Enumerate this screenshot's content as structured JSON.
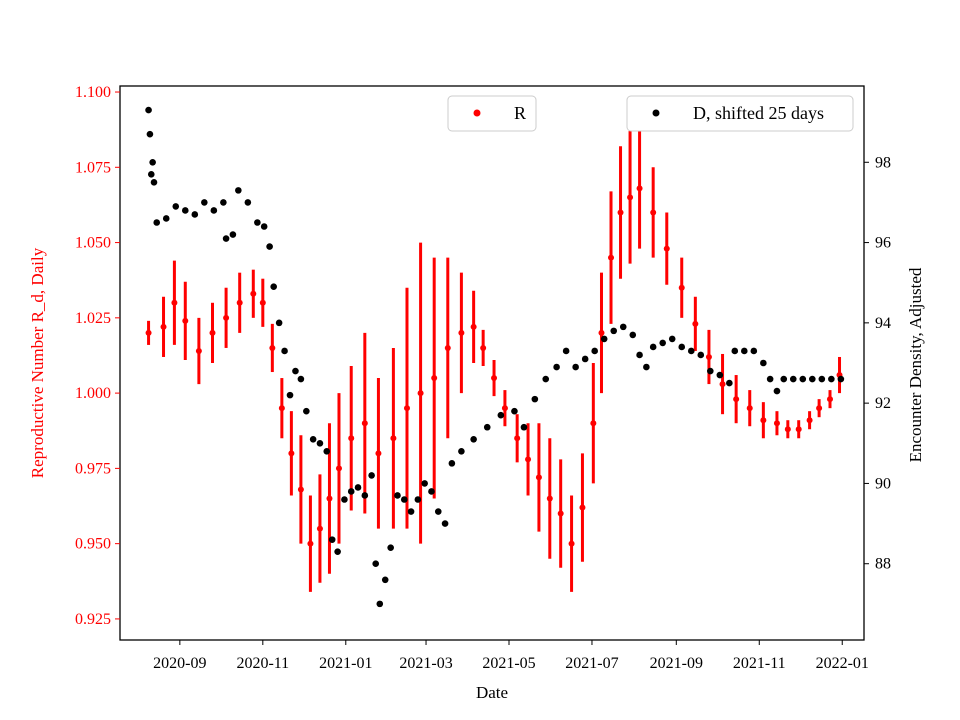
{
  "chart_data": {
    "type": "scatter",
    "xlabel": "Date",
    "x_ticks": [
      "2020-09",
      "2020-11",
      "2021-01",
      "2021-03",
      "2021-05",
      "2021-07",
      "2021-09",
      "2021-11",
      "2022-01"
    ],
    "x_range": [
      "2020-07-19",
      "2022-01-17"
    ],
    "left_axis": {
      "label": "Reproductive Number R_d, Daily",
      "color": "#ff0000",
      "ylim": [
        0.918,
        1.102
      ],
      "ticks": [
        "0.925",
        "0.950",
        "0.975",
        "1.000",
        "1.025",
        "1.050",
        "1.075",
        "1.100"
      ]
    },
    "right_axis": {
      "label": "Encounter Density, Adjusted",
      "color": "#000000",
      "ylim": [
        86.1,
        99.9
      ],
      "ticks": [
        "88",
        "90",
        "92",
        "94",
        "96",
        "98"
      ]
    },
    "legend": [
      {
        "label": "R",
        "color": "#ff0000",
        "position": "top-center"
      },
      {
        "label": "D, shifted 25 days",
        "color": "#000000",
        "position": "top-right"
      }
    ],
    "series": [
      {
        "name": "R",
        "axis": "left",
        "color": "#ff0000",
        "marker": "point with vertical error bars",
        "points": [
          [
            "2020-08-09",
            1.02,
            0.004
          ],
          [
            "2020-08-20",
            1.022,
            0.01
          ],
          [
            "2020-08-28",
            1.03,
            0.014
          ],
          [
            "2020-09-05",
            1.024,
            0.013
          ],
          [
            "2020-09-15",
            1.014,
            0.011
          ],
          [
            "2020-09-25",
            1.02,
            0.01
          ],
          [
            "2020-10-05",
            1.025,
            0.01
          ],
          [
            "2020-10-15",
            1.03,
            0.01
          ],
          [
            "2020-10-25",
            1.033,
            0.008
          ],
          [
            "2020-11-01",
            1.03,
            0.008
          ],
          [
            "2020-11-08",
            1.015,
            0.008
          ],
          [
            "2020-11-15",
            0.995,
            0.01
          ],
          [
            "2020-11-22",
            0.98,
            0.014
          ],
          [
            "2020-11-29",
            0.968,
            0.018
          ],
          [
            "2020-12-06",
            0.95,
            0.016
          ],
          [
            "2020-12-13",
            0.955,
            0.018
          ],
          [
            "2020-12-20",
            0.965,
            0.025
          ],
          [
            "2020-12-27",
            0.975,
            0.025
          ],
          [
            "2021-01-05",
            0.985,
            0.024
          ],
          [
            "2021-01-15",
            0.99,
            0.03
          ],
          [
            "2021-01-25",
            0.98,
            0.025
          ],
          [
            "2021-02-05",
            0.985,
            0.03
          ],
          [
            "2021-02-15",
            0.995,
            0.04
          ],
          [
            "2021-02-25",
            1.0,
            0.05
          ],
          [
            "2021-03-07",
            1.005,
            0.04
          ],
          [
            "2021-03-17",
            1.015,
            0.03
          ],
          [
            "2021-03-27",
            1.02,
            0.02
          ],
          [
            "2021-04-05",
            1.022,
            0.012
          ],
          [
            "2021-04-12",
            1.015,
            0.006
          ],
          [
            "2021-04-20",
            1.005,
            0.006
          ],
          [
            "2021-04-28",
            0.995,
            0.006
          ],
          [
            "2021-05-07",
            0.985,
            0.008
          ],
          [
            "2021-05-15",
            0.978,
            0.012
          ],
          [
            "2021-05-23",
            0.972,
            0.018
          ],
          [
            "2021-05-31",
            0.965,
            0.02
          ],
          [
            "2021-06-08",
            0.96,
            0.018
          ],
          [
            "2021-06-16",
            0.95,
            0.016
          ],
          [
            "2021-06-24",
            0.962,
            0.018
          ],
          [
            "2021-07-02",
            0.99,
            0.02
          ],
          [
            "2021-07-08",
            1.02,
            0.02
          ],
          [
            "2021-07-15",
            1.045,
            0.022
          ],
          [
            "2021-07-22",
            1.06,
            0.022
          ],
          [
            "2021-07-29",
            1.065,
            0.022
          ],
          [
            "2021-08-05",
            1.068,
            0.02
          ],
          [
            "2021-08-15",
            1.06,
            0.015
          ],
          [
            "2021-08-25",
            1.048,
            0.012
          ],
          [
            "2021-09-05",
            1.035,
            0.01
          ],
          [
            "2021-09-15",
            1.023,
            0.009
          ],
          [
            "2021-09-25",
            1.012,
            0.009
          ],
          [
            "2021-10-05",
            1.003,
            0.01
          ],
          [
            "2021-10-15",
            0.998,
            0.008
          ],
          [
            "2021-10-25",
            0.995,
            0.006
          ],
          [
            "2021-11-04",
            0.991,
            0.006
          ],
          [
            "2021-11-14",
            0.99,
            0.004
          ],
          [
            "2021-11-22",
            0.988,
            0.003
          ],
          [
            "2021-11-30",
            0.988,
            0.003
          ],
          [
            "2021-12-08",
            0.991,
            0.003
          ],
          [
            "2021-12-15",
            0.995,
            0.003
          ],
          [
            "2021-12-23",
            0.998,
            0.003
          ],
          [
            "2021-12-30",
            1.006,
            0.006
          ]
        ]
      },
      {
        "name": "D, shifted 25 days",
        "axis": "right",
        "color": "#000000",
        "marker": "dot",
        "points": [
          [
            "2020-08-09",
            99.3
          ],
          [
            "2020-08-10",
            98.7
          ],
          [
            "2020-08-11",
            97.7
          ],
          [
            "2020-08-12",
            98.0
          ],
          [
            "2020-08-13",
            97.5
          ],
          [
            "2020-08-15",
            96.5
          ],
          [
            "2020-08-22",
            96.6
          ],
          [
            "2020-08-29",
            96.9
          ],
          [
            "2020-09-05",
            96.8
          ],
          [
            "2020-09-12",
            96.7
          ],
          [
            "2020-09-19",
            97.0
          ],
          [
            "2020-09-26",
            96.8
          ],
          [
            "2020-10-03",
            97.0
          ],
          [
            "2020-10-05",
            96.1
          ],
          [
            "2020-10-10",
            96.2
          ],
          [
            "2020-10-14",
            97.3
          ],
          [
            "2020-10-21",
            97.0
          ],
          [
            "2020-10-28",
            96.5
          ],
          [
            "2020-11-02",
            96.4
          ],
          [
            "2020-11-06",
            95.9
          ],
          [
            "2020-11-09",
            94.9
          ],
          [
            "2020-11-13",
            94.0
          ],
          [
            "2020-11-17",
            93.3
          ],
          [
            "2020-11-21",
            92.2
          ],
          [
            "2020-11-25",
            92.8
          ],
          [
            "2020-11-29",
            92.6
          ],
          [
            "2020-12-03",
            91.8
          ],
          [
            "2020-12-08",
            91.1
          ],
          [
            "2020-12-13",
            91.0
          ],
          [
            "2020-12-18",
            90.8
          ],
          [
            "2020-12-22",
            88.6
          ],
          [
            "2020-12-26",
            88.3
          ],
          [
            "2020-12-31",
            89.6
          ],
          [
            "2021-01-05",
            89.8
          ],
          [
            "2021-01-10",
            89.9
          ],
          [
            "2021-01-15",
            89.7
          ],
          [
            "2021-01-20",
            90.2
          ],
          [
            "2021-01-23",
            88.0
          ],
          [
            "2021-01-26",
            87.0
          ],
          [
            "2021-01-30",
            87.6
          ],
          [
            "2021-02-03",
            88.4
          ],
          [
            "2021-02-08",
            89.7
          ],
          [
            "2021-02-13",
            89.6
          ],
          [
            "2021-02-18",
            89.3
          ],
          [
            "2021-02-23",
            89.6
          ],
          [
            "2021-02-28",
            90.0
          ],
          [
            "2021-03-05",
            89.8
          ],
          [
            "2021-03-10",
            89.3
          ],
          [
            "2021-03-15",
            89.0
          ],
          [
            "2021-03-20",
            90.5
          ],
          [
            "2021-03-27",
            90.8
          ],
          [
            "2021-04-05",
            91.1
          ],
          [
            "2021-04-15",
            91.4
          ],
          [
            "2021-04-25",
            91.7
          ],
          [
            "2021-05-05",
            91.8
          ],
          [
            "2021-05-12",
            91.4
          ],
          [
            "2021-05-20",
            92.1
          ],
          [
            "2021-05-28",
            92.6
          ],
          [
            "2021-06-05",
            92.9
          ],
          [
            "2021-06-12",
            93.3
          ],
          [
            "2021-06-19",
            92.9
          ],
          [
            "2021-06-26",
            93.1
          ],
          [
            "2021-07-03",
            93.3
          ],
          [
            "2021-07-10",
            93.6
          ],
          [
            "2021-07-17",
            93.8
          ],
          [
            "2021-07-24",
            93.9
          ],
          [
            "2021-07-31",
            93.7
          ],
          [
            "2021-08-05",
            93.2
          ],
          [
            "2021-08-10",
            92.9
          ],
          [
            "2021-08-15",
            93.4
          ],
          [
            "2021-08-22",
            93.5
          ],
          [
            "2021-08-29",
            93.6
          ],
          [
            "2021-09-05",
            93.4
          ],
          [
            "2021-09-12",
            93.3
          ],
          [
            "2021-09-19",
            93.2
          ],
          [
            "2021-09-26",
            92.8
          ],
          [
            "2021-10-03",
            92.7
          ],
          [
            "2021-10-10",
            92.5
          ],
          [
            "2021-10-14",
            93.3
          ],
          [
            "2021-10-21",
            93.3
          ],
          [
            "2021-10-28",
            93.3
          ],
          [
            "2021-11-04",
            93.0
          ],
          [
            "2021-11-09",
            92.6
          ],
          [
            "2021-11-14",
            92.3
          ],
          [
            "2021-11-19",
            92.6
          ],
          [
            "2021-11-26",
            92.6
          ],
          [
            "2021-12-03",
            92.6
          ],
          [
            "2021-12-10",
            92.6
          ],
          [
            "2021-12-17",
            92.6
          ],
          [
            "2021-12-24",
            92.6
          ],
          [
            "2021-12-31",
            92.6
          ]
        ]
      }
    ]
  }
}
